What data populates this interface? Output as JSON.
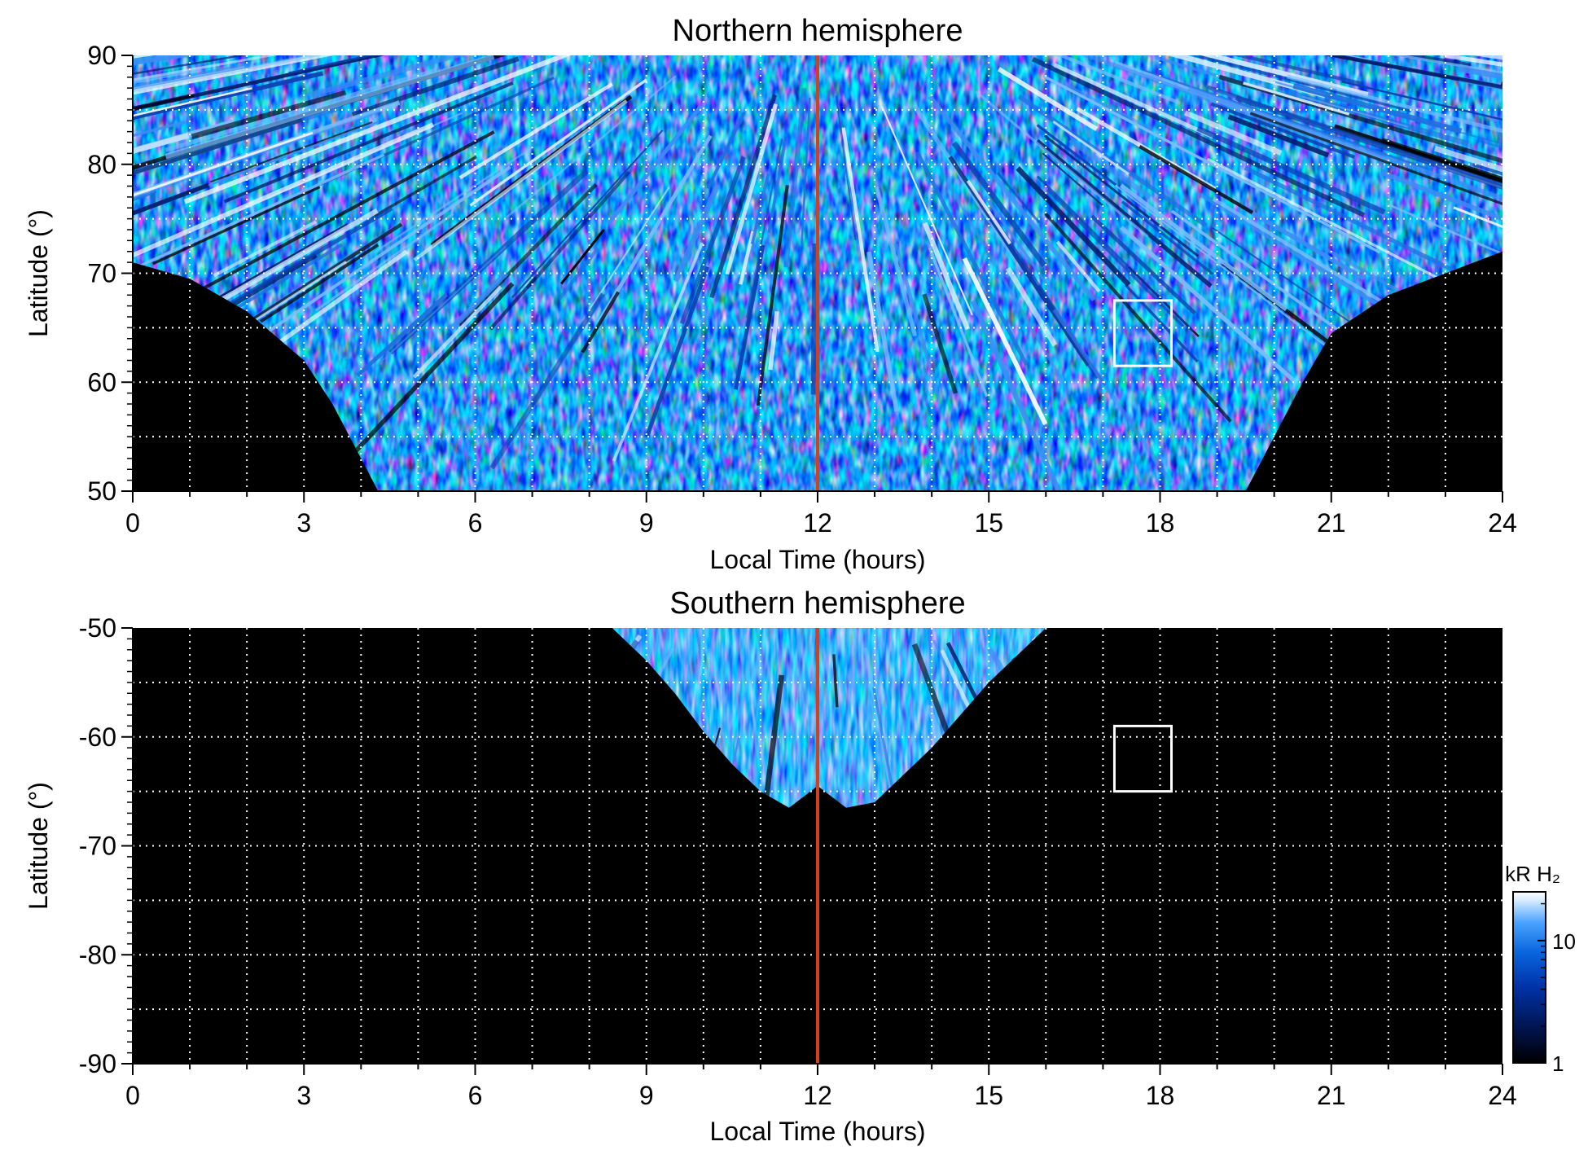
{
  "colors": {
    "background": "#000000",
    "grid": "#ffffff",
    "noon_line": "#d2401e",
    "box": "#ffffff",
    "colormap": [
      "#000000",
      "#001a66",
      "#0044cc",
      "#1f7ae8",
      "#6fb4ff",
      "#e9f4ff",
      "#ffffff"
    ]
  },
  "chart_data": [
    {
      "type": "heatmap",
      "title": "Northern hemisphere",
      "xlabel": "Local Time (hours)",
      "ylabel": "Latitude (°)",
      "xlim": [
        0,
        24
      ],
      "ylim": [
        50,
        90
      ],
      "xticks": [
        0,
        3,
        6,
        9,
        12,
        15,
        18,
        21,
        24
      ],
      "xtick_labels": [
        "0",
        "3",
        "6",
        "9",
        "12",
        "15",
        "18",
        "21",
        "24"
      ],
      "yticks": [
        50,
        60,
        70,
        80,
        90
      ],
      "ytick_labels": [
        "50",
        "60",
        "70",
        "80",
        "90"
      ],
      "grid": true,
      "grid_x_step": 1,
      "grid_y_step": 5,
      "noon_line_x": 12,
      "box": {
        "x": [
          17.2,
          18.2
        ],
        "y": [
          61.5,
          67.5
        ]
      },
      "coverage_boundary": {
        "x": [
          0,
          1,
          2,
          3,
          3.5,
          4,
          4.3,
          19.5,
          20,
          20.5,
          21,
          22,
          23,
          24
        ],
        "lat": [
          71,
          69.5,
          66.5,
          62,
          58,
          53,
          50,
          50,
          55,
          60,
          64.5,
          68,
          70,
          72
        ]
      }
    },
    {
      "type": "heatmap",
      "title": "Southern hemisphere",
      "xlabel": "Local Time (hours)",
      "ylabel": "Latitude (°)",
      "xlim": [
        0,
        24
      ],
      "ylim": [
        -90,
        -50
      ],
      "xticks": [
        0,
        3,
        6,
        9,
        12,
        15,
        18,
        21,
        24
      ],
      "xtick_labels": [
        "0",
        "3",
        "6",
        "9",
        "12",
        "15",
        "18",
        "21",
        "24"
      ],
      "yticks": [
        -90,
        -80,
        -70,
        -60,
        -50
      ],
      "ytick_labels": [
        "-90",
        "-80",
        "-70",
        "-60",
        "-50"
      ],
      "grid": true,
      "grid_x_step": 1,
      "grid_y_step": 5,
      "noon_line_x": 12,
      "box": {
        "x": [
          17.2,
          18.2
        ],
        "y": [
          -65,
          -59
        ]
      },
      "coverage_boundary": {
        "x": [
          8.4,
          9,
          9.5,
          10,
          10.5,
          11,
          11.5,
          12,
          12.5,
          13,
          13.5,
          14,
          14.5,
          15,
          15.5,
          16
        ],
        "lat": [
          -50,
          -53,
          -56,
          -59.5,
          -62.5,
          -65,
          -66.5,
          -64.5,
          -66.5,
          -66,
          -63.5,
          -61,
          -58,
          -55,
          -52.5,
          -50
        ]
      }
    }
  ],
  "colorbar": {
    "label": "kR H₂",
    "scale": "log",
    "range": [
      1,
      25
    ],
    "ticks": [
      1,
      10
    ],
    "tick_labels": [
      "1",
      "10"
    ]
  }
}
